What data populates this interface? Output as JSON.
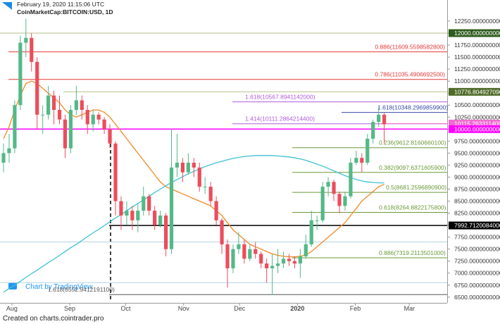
{
  "header": {
    "timestamp": "February 19, 2020 11:15:06 UTC",
    "symbol": "CoinMarketCap:BITCOIN:USD, 1D"
  },
  "footer": "Created on charts.cointrader.pro",
  "chart_data": {
    "type": "candlestick",
    "watermark": "Chart by TradingView",
    "up_color": "#53b987",
    "down_color": "#eb4d5c",
    "candles": [
      [
        9300,
        9700,
        9100,
        9500
      ],
      [
        9500,
        9900,
        9300,
        9600
      ],
      [
        9600,
        10600,
        9500,
        10500
      ],
      [
        10500,
        11950,
        10400,
        11800
      ],
      [
        11800,
        12300,
        11500,
        11900
      ],
      [
        11900,
        12000,
        11200,
        11400
      ],
      [
        11400,
        11500,
        10000,
        10300
      ],
      [
        10300,
        10500,
        9900,
        10300
      ],
      [
        10300,
        10900,
        10200,
        10700
      ],
      [
        10700,
        10800,
        10100,
        10400
      ],
      [
        10400,
        10700,
        10100,
        10200
      ],
      [
        10200,
        10300,
        9400,
        9600
      ],
      [
        9600,
        10500,
        9500,
        10400
      ],
      [
        10400,
        10900,
        10300,
        10600
      ],
      [
        10600,
        10700,
        10200,
        10400
      ],
      [
        10400,
        10500,
        9900,
        10100
      ],
      [
        10100,
        10400,
        9950,
        10300
      ],
      [
        10300,
        10350,
        10100,
        10200
      ],
      [
        10200,
        10250,
        9900,
        10000
      ],
      [
        10000,
        10100,
        9600,
        9700
      ],
      [
        9700,
        9750,
        8200,
        8500
      ],
      [
        8500,
        8600,
        7900,
        8200
      ],
      [
        8200,
        8500,
        8000,
        8300
      ],
      [
        8300,
        8400,
        7900,
        8100
      ],
      [
        8100,
        8450,
        7850,
        8300
      ],
      [
        8300,
        8800,
        8200,
        8600
      ],
      [
        8600,
        8650,
        8200,
        8300
      ],
      [
        8300,
        8400,
        7900,
        8000
      ],
      [
        8000,
        8300,
        7950,
        8200
      ],
      [
        8200,
        8250,
        7350,
        7500
      ],
      [
        7500,
        10000,
        7400,
        9200
      ],
      [
        9200,
        9900,
        9000,
        9300
      ],
      [
        9300,
        9400,
        8900,
        9100
      ],
      [
        9100,
        9500,
        9050,
        9300
      ],
      [
        9300,
        9400,
        9000,
        9200
      ],
      [
        9200,
        9300,
        8700,
        8800
      ],
      [
        8800,
        9000,
        8650,
        8800
      ],
      [
        8800,
        8900,
        8400,
        8500
      ],
      [
        8500,
        8600,
        8000,
        8100
      ],
      [
        8100,
        8150,
        7400,
        7600
      ],
      [
        7600,
        7700,
        6700,
        7100
      ],
      [
        7100,
        7600,
        7000,
        7500
      ],
      [
        7500,
        7850,
        7400,
        7600
      ],
      [
        7600,
        7700,
        7200,
        7300
      ],
      [
        7300,
        7600,
        7250,
        7500
      ],
      [
        7500,
        7650,
        7300,
        7400
      ],
      [
        7400,
        7450,
        7100,
        7200
      ],
      [
        7200,
        7300,
        6800,
        7100
      ],
      [
        7100,
        7400,
        6550,
        7150
      ],
      [
        7150,
        7500,
        7000,
        7200
      ],
      [
        7200,
        7450,
        7100,
        7300
      ],
      [
        7300,
        7400,
        7150,
        7250
      ],
      [
        7250,
        7350,
        7100,
        7200
      ],
      [
        7200,
        7500,
        6900,
        7350
      ],
      [
        7350,
        7800,
        7300,
        7600
      ],
      [
        7600,
        8300,
        7550,
        8100
      ],
      [
        8100,
        8200,
        7900,
        8100
      ],
      [
        8100,
        8900,
        8050,
        8800
      ],
      [
        8800,
        9000,
        8600,
        8900
      ],
      [
        8900,
        8950,
        8500,
        8650
      ],
      [
        8650,
        8700,
        8250,
        8400
      ],
      [
        8400,
        8700,
        8300,
        8600
      ],
      [
        8600,
        9400,
        8550,
        9300
      ],
      [
        9300,
        9550,
        9250,
        9400
      ],
      [
        9400,
        9500,
        9100,
        9300
      ],
      [
        9300,
        9900,
        9250,
        9800
      ],
      [
        9800,
        10200,
        9700,
        10150
      ],
      [
        10150,
        10450,
        10050,
        10300
      ],
      [
        10300,
        10350,
        9700,
        10100
      ]
    ],
    "series": [
      {
        "color": "#f08a24",
        "values": [
          9800,
          10050,
          10400,
          10700,
          10950,
          11000,
          10950,
          10850,
          10750,
          10650,
          10550,
          10400,
          10300,
          10250,
          10300,
          10350,
          10400,
          10400,
          10350,
          10250,
          10100,
          9950,
          9800,
          9650,
          9500,
          9350,
          9200,
          9050,
          8900,
          8800,
          8750,
          8700,
          8650,
          8600,
          8550,
          8500,
          8450,
          8400,
          8300,
          8200,
          8050,
          7900,
          7800,
          7700,
          7600,
          7550,
          7500,
          7450,
          7400,
          7370,
          7350,
          7340,
          7340,
          7350,
          7380,
          7450,
          7550,
          7650,
          7750,
          7850,
          7950,
          8050,
          8200,
          8350,
          8500,
          8600,
          8700,
          8800,
          8850
        ]
      },
      {
        "color": "#3ec1d3",
        "values": [
          6600,
          6680,
          6750,
          6830,
          6910,
          6990,
          7060,
          7140,
          7220,
          7290,
          7370,
          7450,
          7530,
          7600,
          7680,
          7760,
          7840,
          7910,
          7990,
          8070,
          8150,
          8220,
          8300,
          8380,
          8450,
          8530,
          8600,
          8680,
          8750,
          8820,
          8890,
          8950,
          9010,
          9070,
          9120,
          9170,
          9220,
          9260,
          9300,
          9330,
          9360,
          9390,
          9410,
          9430,
          9440,
          9450,
          9450,
          9450,
          9450,
          9440,
          9430,
          9420,
          9400,
          9380,
          9350,
          9310,
          9270,
          9230,
          9180,
          9130,
          9080,
          9030,
          8990,
          8950,
          8920,
          8900,
          8890,
          8880,
          8880
        ]
      }
    ],
    "levels": [
      {
        "value": 12000,
        "tag": "12000.0000000000",
        "color": "#2f5d1f"
      },
      {
        "value": 11609.55985828,
        "label": "0.886(11609.5598582800)",
        "color": "#e53935"
      },
      {
        "value": 11035.49066925,
        "label": "0.786(11035.4906692500)",
        "color": "#e53935"
      },
      {
        "value": 10776.80492709,
        "tag": "10776.8049270900",
        "color": "#4f6b2a"
      },
      {
        "value": 10567.8941142,
        "label": "1.618(10567.8941142000)",
        "color": "#b05ce0"
      },
      {
        "value": 10348.29698599,
        "label": "1.618(10348.2969859900)",
        "color": "#3949ab"
      },
      {
        "value": 10111.28642144,
        "label": "1.414(10111.2864214400)",
        "color": "#b05ce0"
      },
      {
        "value": 10115.2633114,
        "tag": "10115.2633114000",
        "color": "#f06bd0"
      },
      {
        "value": 10000,
        "tag": "10000.0000000000",
        "color": "#ff00ff"
      },
      {
        "value": 9612.81606601,
        "label": "0.236(9612.8160660100)",
        "color": "#6a9a3a"
      },
      {
        "value": 9097.63716059,
        "label": "0.382(9097.6371605900)",
        "color": "#6a9a3a"
      },
      {
        "value": 8681.25968909,
        "label": "0.5(8681.2596890900)",
        "color": "#6a9a3a"
      },
      {
        "value": 8264.88221758,
        "label": "0.618(8264.8822175800)",
        "color": "#6a9a3a"
      },
      {
        "value": 7992.7120084,
        "tag": "7992.7120084000",
        "color": "#000000"
      },
      {
        "value": 7319.2113501,
        "label": "0.886(7319.2113501000)",
        "color": "#6a9a3a"
      },
      {
        "value": 6552.94121911,
        "label": "1.618(6552.9412191100)",
        "color": "#555555"
      },
      {
        "value": 7650,
        "color": "#b3d4e6"
      },
      {
        "value": 6800,
        "color": "#b3d4e6"
      }
    ],
    "ylim": [
      6380,
      12690
    ],
    "yticks": [
      {
        "value": 6500,
        "label": "6500.0000000000"
      },
      {
        "value": 6750,
        "label": "6750.0000000000"
      },
      {
        "value": 7000,
        "label": "7000.0000000000"
      },
      {
        "value": 7250,
        "label": "7250.0000000000"
      },
      {
        "value": 7500,
        "label": "7500.0000000000"
      },
      {
        "value": 7750,
        "label": "7750.0000000000"
      },
      {
        "value": 8000,
        "label": "8000.0000000000"
      },
      {
        "value": 8250,
        "label": "8250.0000000000"
      },
      {
        "value": 8500,
        "label": "8500.0000000000"
      },
      {
        "value": 8750,
        "label": "8750.0000000000"
      },
      {
        "value": 9000,
        "label": "9000.0000000000"
      },
      {
        "value": 9250,
        "label": "9250.0000000000"
      },
      {
        "value": 9500,
        "label": "9500.0000000000"
      },
      {
        "value": 9750,
        "label": "9750.0000000000"
      },
      {
        "value": 10000,
        "label": "10000.0000000000"
      },
      {
        "value": 10250,
        "label": "10250.0000000000"
      },
      {
        "value": 10500,
        "label": "10500.0000000000"
      },
      {
        "value": 10750,
        "label": "10750.0000000000"
      },
      {
        "value": 11000,
        "label": "11000.0000000000"
      },
      {
        "value": 11250,
        "label": "11250.0000000000"
      },
      {
        "value": 11500,
        "label": "11500.0000000000"
      },
      {
        "value": 11750,
        "label": "11750.0000000000"
      },
      {
        "value": 12000,
        "label": "12000.0000000000"
      },
      {
        "value": 12250,
        "label": "12250.0000000000"
      }
    ],
    "xticks": [
      {
        "value": 1.5,
        "label": "Aug"
      },
      {
        "value": 11.83,
        "label": "Sep"
      },
      {
        "value": 21.83,
        "label": "Oct"
      },
      {
        "value": 32.17,
        "label": "Nov"
      },
      {
        "value": 42.17,
        "label": "Dec"
      },
      {
        "value": 52.5,
        "label": "2020"
      },
      {
        "value": 62.83,
        "label": "Feb"
      },
      {
        "value": 72.5,
        "label": "Mar"
      }
    ]
  }
}
